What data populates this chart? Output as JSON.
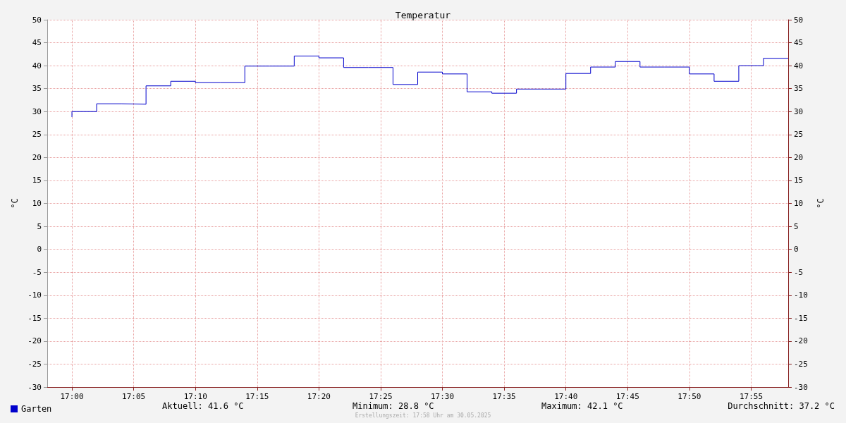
{
  "chart_data": {
    "type": "step",
    "title": "Temperatur",
    "ylabel": "°C",
    "y2label": "°C",
    "x": [
      "2025-05-30T17:00",
      "2025-05-30T17:02",
      "2025-05-30T17:04",
      "2025-05-30T17:06",
      "2025-05-30T17:08",
      "2025-05-30T17:10",
      "2025-05-30T17:12",
      "2025-05-30T17:14",
      "2025-05-30T17:16",
      "2025-05-30T17:18",
      "2025-05-30T17:20",
      "2025-05-30T17:22",
      "2025-05-30T17:24",
      "2025-05-30T17:26",
      "2025-05-30T17:28",
      "2025-05-30T17:30",
      "2025-05-30T17:32",
      "2025-05-30T17:34",
      "2025-05-30T17:36",
      "2025-05-30T17:38",
      "2025-05-30T17:40",
      "2025-05-30T17:42",
      "2025-05-30T17:44",
      "2025-05-30T17:46",
      "2025-05-30T17:48",
      "2025-05-30T17:50",
      "2025-05-30T17:52",
      "2025-05-30T17:54",
      "2025-05-30T17:56",
      "2025-05-30T17:58"
    ],
    "series": [
      {
        "name": "Garten",
        "color": "#0000cc",
        "values": [
          28.8,
          30.0,
          31.7,
          31.6,
          35.6,
          36.6,
          36.3,
          36.3,
          39.9,
          39.9,
          42.1,
          41.7,
          39.6,
          39.6,
          35.9,
          38.6,
          38.2,
          34.3,
          34.0,
          34.9,
          34.9,
          38.3,
          39.7,
          40.9,
          39.7,
          39.7,
          38.2,
          36.6,
          40.0,
          41.6
        ]
      }
    ],
    "xlim": [
      "2025-05-30T16:58",
      "2025-05-30T17:58"
    ],
    "xticks": [
      {
        "value": "2025-05-30T17:00",
        "label": "17:00"
      },
      {
        "value": "2025-05-30T17:05",
        "label": "17:05"
      },
      {
        "value": "2025-05-30T17:10",
        "label": "17:10"
      },
      {
        "value": "2025-05-30T17:15",
        "label": "17:15"
      },
      {
        "value": "2025-05-30T17:20",
        "label": "17:20"
      },
      {
        "value": "2025-05-30T17:25",
        "label": "17:25"
      },
      {
        "value": "2025-05-30T17:30",
        "label": "17:30"
      },
      {
        "value": "2025-05-30T17:35",
        "label": "17:35"
      },
      {
        "value": "2025-05-30T17:40",
        "label": "17:40"
      },
      {
        "value": "2025-05-30T17:45",
        "label": "17:45"
      },
      {
        "value": "2025-05-30T17:50",
        "label": "17:50"
      },
      {
        "value": "2025-05-30T17:55",
        "label": "17:55"
      }
    ],
    "ylim": [
      -30,
      50
    ],
    "yticks": [
      -30,
      -25,
      -20,
      -15,
      -10,
      -5,
      0,
      5,
      10,
      15,
      20,
      25,
      30,
      35,
      40,
      45,
      50
    ],
    "y2lim": [
      -30,
      50
    ],
    "y2ticks": [
      -30,
      -25,
      -20,
      -15,
      -10,
      -5,
      0,
      5,
      10,
      15,
      20,
      25,
      30,
      35,
      40,
      45,
      50
    ],
    "grid": true,
    "legend": "bottom left",
    "marker": "none",
    "line_style": "solid",
    "annotations": [
      "Aktuell: 41.6 °C",
      "Minimum: 28.8 °C",
      "Maximum: 42.1 °C",
      "Durchschnitt: 37.2 °C",
      "Erstellungszeit: 17:58 Uhr am 30.05.2025"
    ]
  }
}
